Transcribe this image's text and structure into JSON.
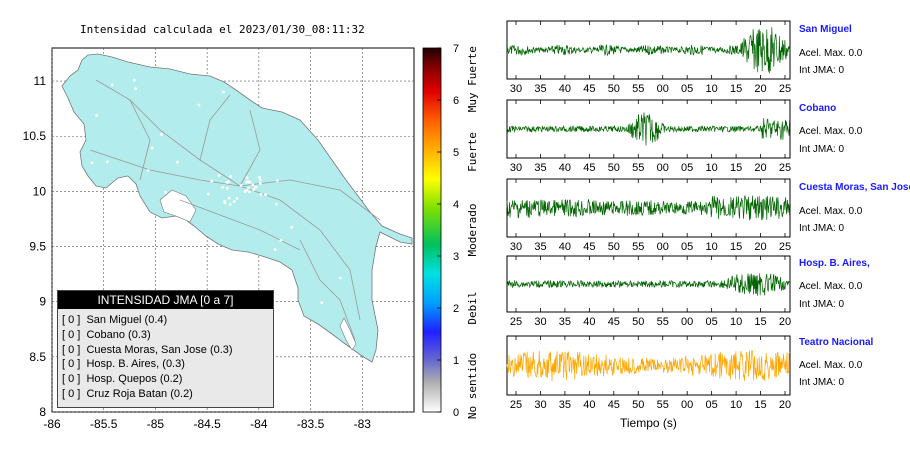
{
  "map": {
    "title": "Intensidad calculada el 2023/01/30_08:11:32",
    "x_ticks": [
      "-86",
      "-85.5",
      "-85",
      "-84.5",
      "-84",
      "-83.5",
      "-83"
    ],
    "y_ticks": [
      "8",
      "8.5",
      "9",
      "9.5",
      "10",
      "10.5",
      "11"
    ],
    "land_color": "#b3ecec"
  },
  "legend": {
    "title": "INTENSIDAD JMA [0 a 7]",
    "items": [
      {
        "level": "[ 0 ]",
        "station": "San Miguel (0.4)"
      },
      {
        "level": "[ 0 ]",
        "station": "Cobano (0.3)"
      },
      {
        "level": "[ 0 ]",
        "station": "Cuesta Moras, San Jose (0.3)"
      },
      {
        "level": "[ 0 ]",
        "station": "Hosp. B. Aires, (0.3)"
      },
      {
        "level": "[ 0 ]",
        "station": "Hosp. Quepos (0.2)"
      },
      {
        "level": "[ 0 ]",
        "station": "Cruz Roja Batan (0.2)"
      }
    ]
  },
  "colorbar": {
    "ticks": [
      "0",
      "1",
      "2",
      "3",
      "4",
      "5",
      "6",
      "7"
    ],
    "labels": [
      "No sentido",
      "Debil",
      "Moderado",
      "Fuerte",
      "Muy Fuerte"
    ]
  },
  "stations": [
    {
      "name": "San Miguel",
      "acel": "Acel. Max. 0.0",
      "int": "Int JMA: 0",
      "color": "#006400",
      "ticks": [
        "30",
        "35",
        "40",
        "45",
        "50",
        "55",
        "00",
        "05",
        "10",
        "15",
        "20",
        "25"
      ]
    },
    {
      "name": "Cobano",
      "acel": "Acel. Max. 0.0",
      "int": "Int JMA: 0",
      "color": "#006400",
      "ticks": [
        "30",
        "35",
        "40",
        "45",
        "50",
        "55",
        "00",
        "05",
        "10",
        "15",
        "20",
        "25"
      ]
    },
    {
      "name": "Cuesta Moras, San Jose",
      "acel": "Acel. Max. 0.0",
      "int": "Int JMA: 0",
      "color": "#006400",
      "ticks": [
        "30",
        "35",
        "40",
        "45",
        "50",
        "55",
        "00",
        "05",
        "10",
        "15",
        "20",
        "25"
      ]
    },
    {
      "name": "Hosp. B. Aires,",
      "acel": "Acel. Max. 0.0",
      "int": "Int JMA: 0",
      "color": "#006400",
      "ticks": [
        "25",
        "30",
        "35",
        "40",
        "45",
        "50",
        "55",
        "00",
        "05",
        "10",
        "15",
        "20"
      ]
    },
    {
      "name": "Teatro Nacional",
      "acel": "Acel. Max. 0.0",
      "int": "Int JMA: 0",
      "color": "#ffa500",
      "ticks": [
        "25",
        "30",
        "35",
        "40",
        "45",
        "50",
        "55",
        "00",
        "05",
        "10",
        "15",
        "20"
      ]
    }
  ],
  "time_label": "Tiempo (s)",
  "chart_data": [
    {
      "type": "heatmap",
      "title": "Intensidad calculada el 2023/01/30_08:11:32",
      "xlim": [
        -86,
        -82.5
      ],
      "ylim": [
        8,
        11.3
      ],
      "colorbar_range": [
        0,
        7
      ],
      "values": "JMA intensity 0 everywhere"
    },
    {
      "type": "line",
      "series": [
        {
          "name": "San Miguel",
          "values": "seismogram trace"
        }
      ]
    },
    {
      "type": "line",
      "series": [
        {
          "name": "Cobano",
          "values": "seismogram trace"
        }
      ]
    },
    {
      "type": "line",
      "series": [
        {
          "name": "Cuesta Moras, San Jose",
          "values": "seismogram trace"
        }
      ]
    },
    {
      "type": "line",
      "series": [
        {
          "name": "Hosp. B. Aires,",
          "values": "seismogram trace"
        }
      ]
    },
    {
      "type": "line",
      "series": [
        {
          "name": "Teatro Nacional",
          "values": "seismogram trace"
        }
      ]
    }
  ]
}
